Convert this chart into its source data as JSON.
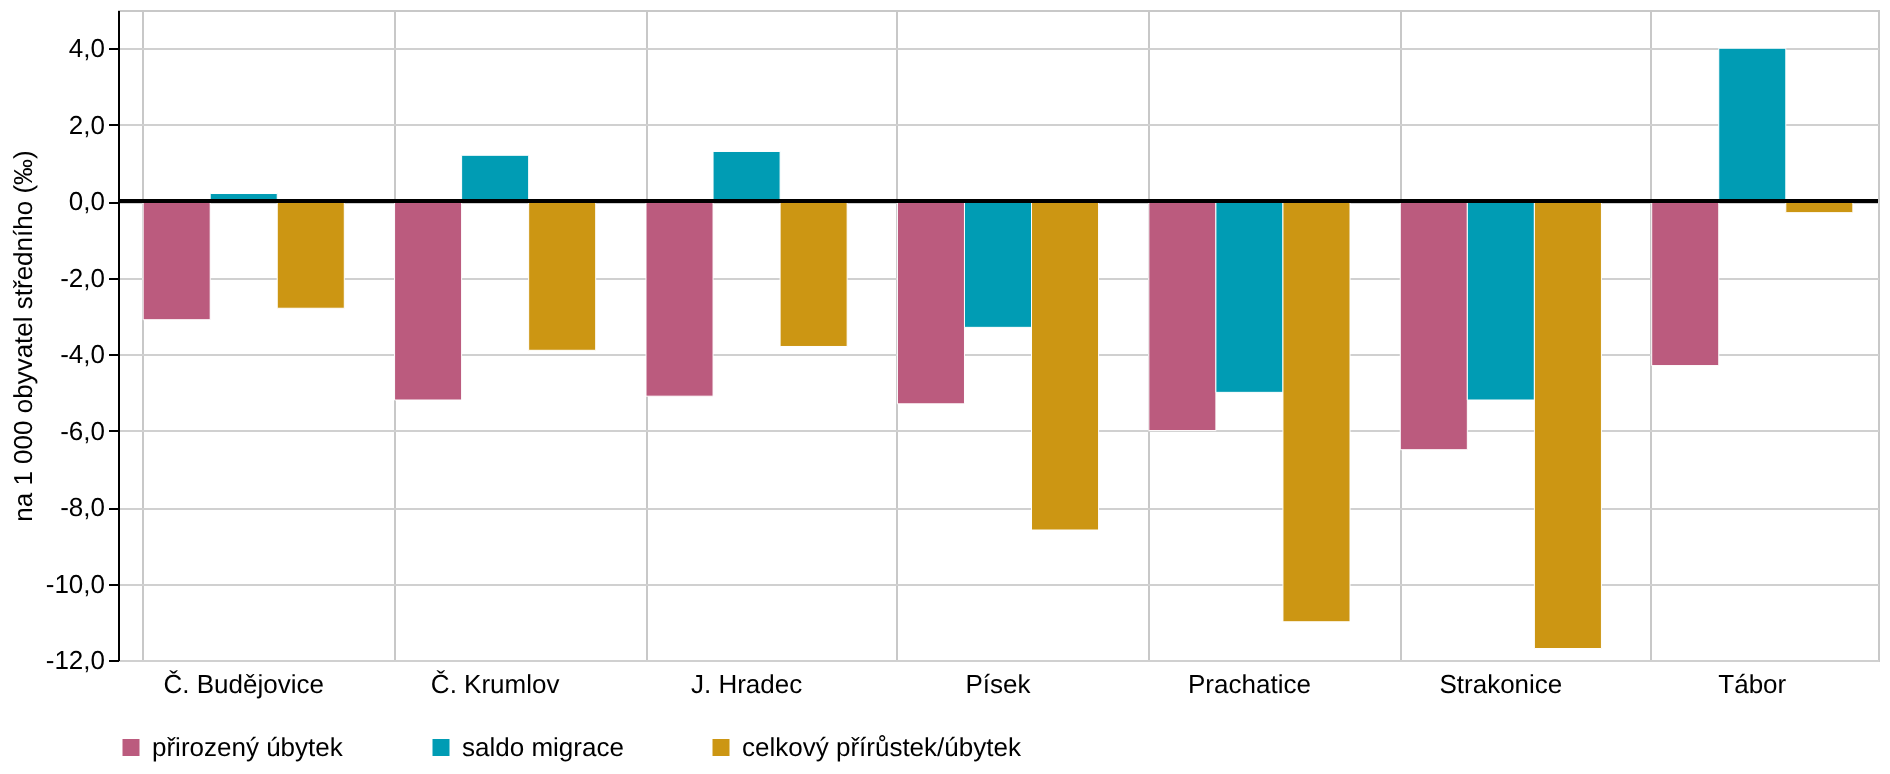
{
  "chart_data": {
    "type": "bar",
    "ylabel": "na 1 000 obyvatel středního  (‰)",
    "categories": [
      "Č. Budějovice",
      "Č. Krumlov",
      "J. Hradec",
      "Písek",
      "Prachatice",
      "Strakonice",
      "Tábor"
    ],
    "series": [
      {
        "name": "přirozený úbytek",
        "color": "#bb5b7e",
        "values": [
          -3.1,
          -5.2,
          -5.1,
          -5.3,
          -6.0,
          -6.5,
          -4.3
        ]
      },
      {
        "name": "saldo migrace",
        "color": "#009cb4",
        "values": [
          0.2,
          1.2,
          1.3,
          -3.3,
          -5.0,
          -5.2,
          4.0
        ]
      },
      {
        "name": "celkový přírůstek/úbytek",
        "color": "#cc9613",
        "values": [
          -2.8,
          -3.9,
          -3.8,
          -8.6,
          -11.0,
          -11.7,
          -0.3
        ]
      }
    ],
    "ylim": [
      -12,
      5
    ],
    "yticks": [
      {
        "value": -12,
        "label": "-12,0"
      },
      {
        "value": -10,
        "label": "-10,0"
      },
      {
        "value": -8,
        "label": "-8,0"
      },
      {
        "value": -6,
        "label": "-6,0"
      },
      {
        "value": -4,
        "label": "-4,0"
      },
      {
        "value": -2,
        "label": "-2,0"
      },
      {
        "value": 0,
        "label": "0,0"
      },
      {
        "value": 2,
        "label": "2,0"
      },
      {
        "value": 4,
        "label": "4,0"
      }
    ],
    "grid": true,
    "legend": "bottom"
  }
}
